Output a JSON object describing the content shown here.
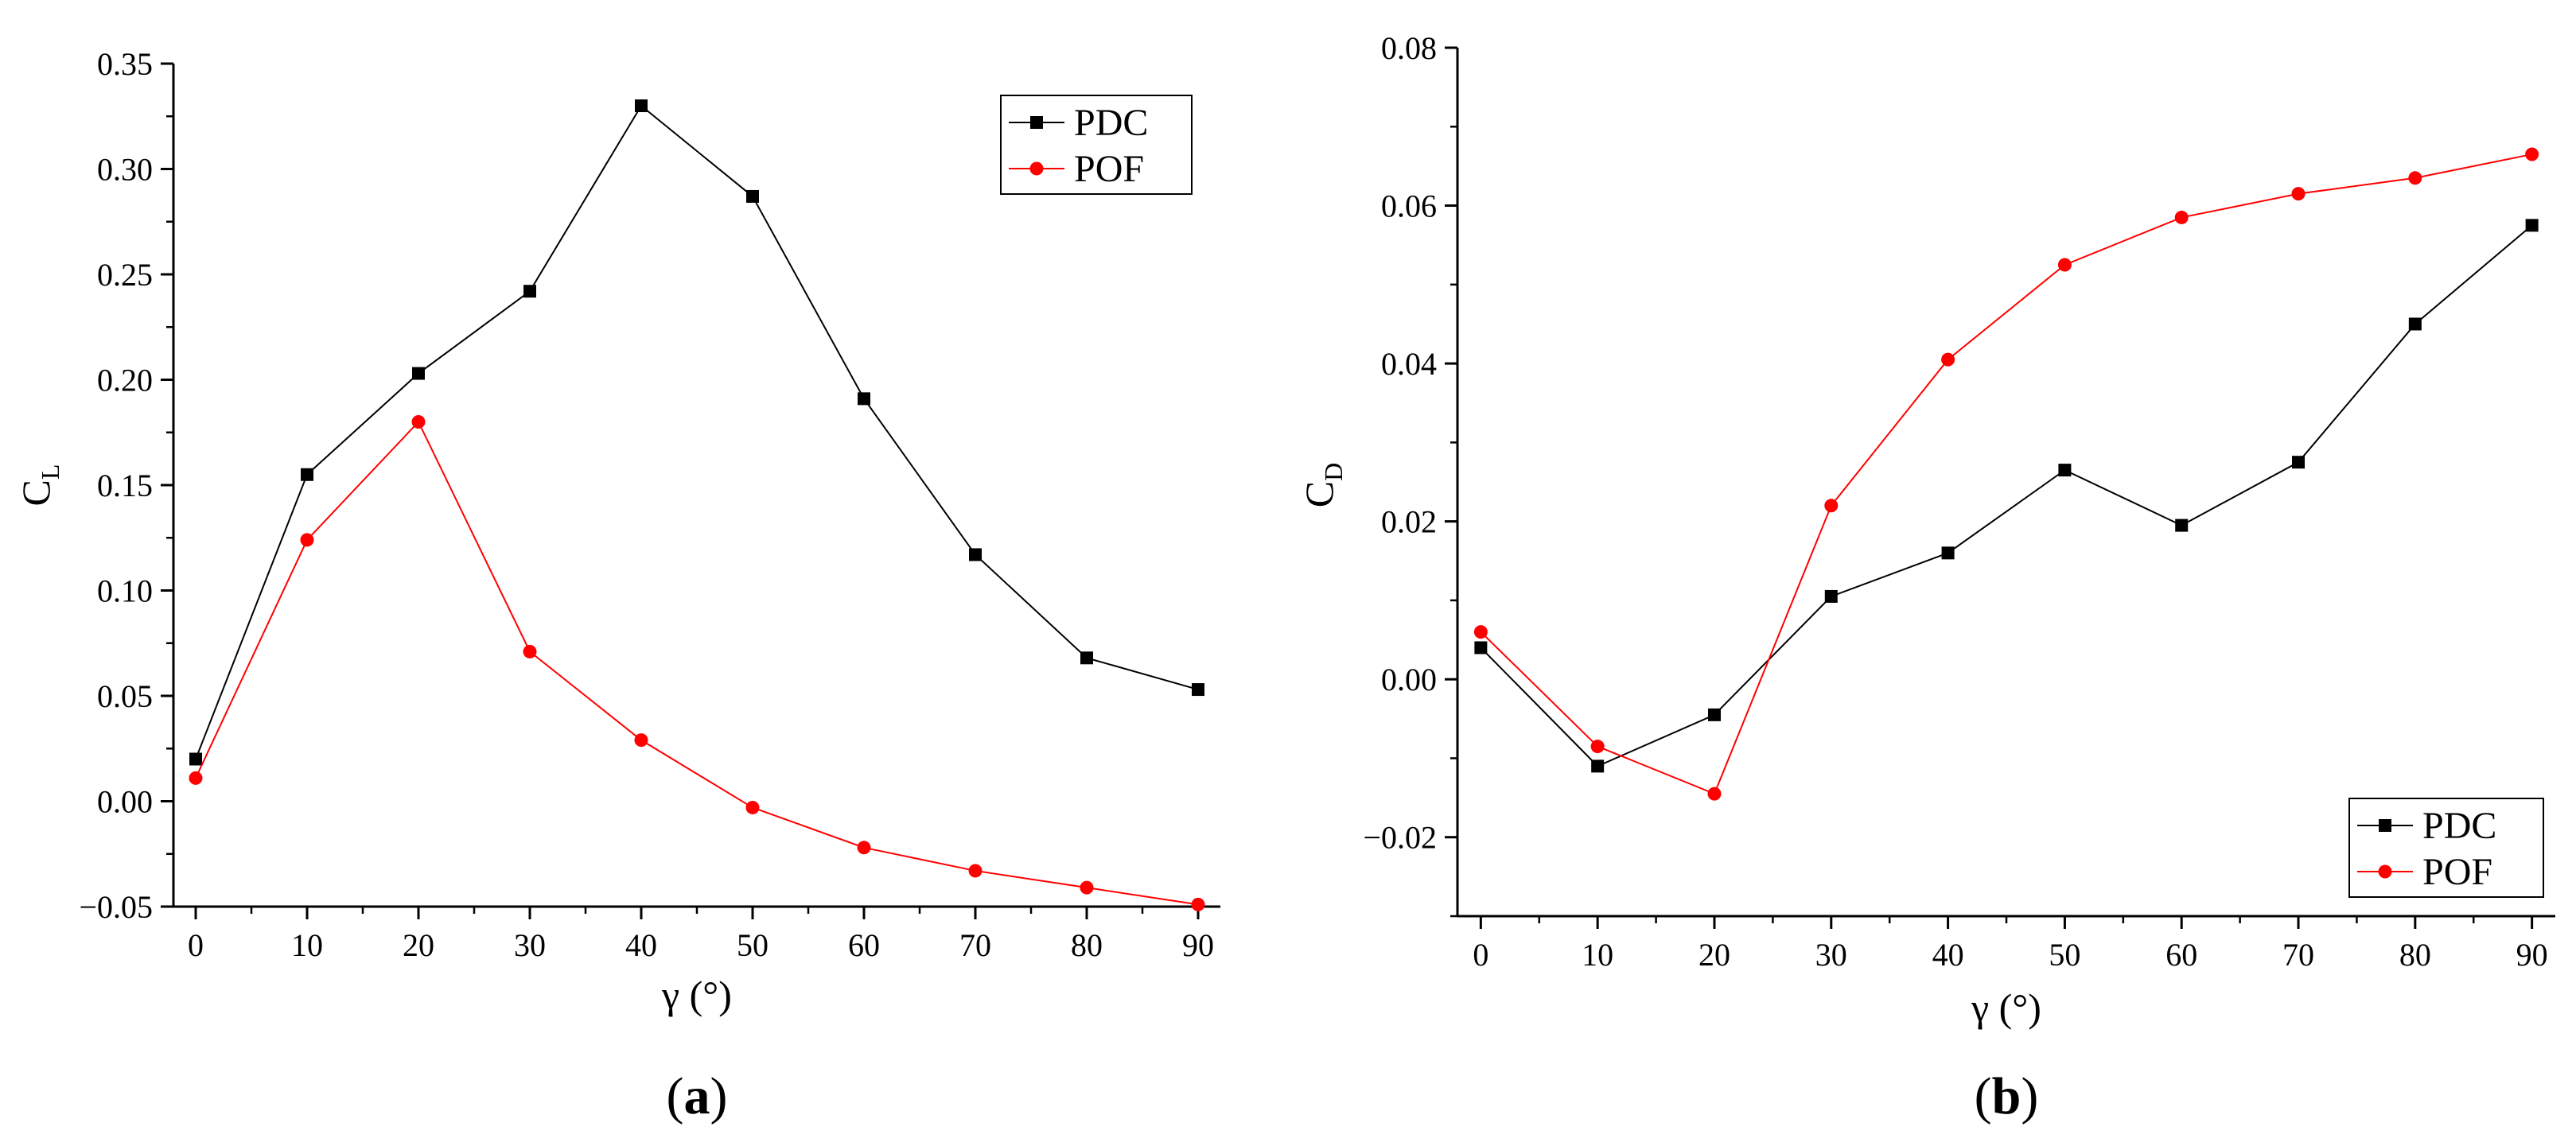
{
  "chart_data": [
    {
      "type": "line",
      "panel_label": "a",
      "caption_open": "(",
      "caption_close": ")",
      "title": "",
      "xlabel": "γ (°)",
      "ylabel_main": "C",
      "ylabel_sub": "L",
      "x": [
        0,
        10,
        20,
        30,
        40,
        50,
        60,
        70,
        80,
        90
      ],
      "xlim": [
        -2,
        92
      ],
      "ylim": [
        -0.05,
        0.35
      ],
      "xticks": [
        0,
        10,
        20,
        30,
        40,
        50,
        60,
        70,
        80,
        90
      ],
      "xtick_labels": [
        "0",
        "10",
        "20",
        "30",
        "40",
        "50",
        "60",
        "70",
        "80",
        "90"
      ],
      "yticks": [
        -0.05,
        0.0,
        0.05,
        0.1,
        0.15,
        0.2,
        0.25,
        0.3,
        0.35
      ],
      "ytick_labels": [
        "−0.05",
        "0.00",
        "0.05",
        "0.10",
        "0.15",
        "0.20",
        "0.25",
        "0.30",
        "0.35"
      ],
      "legend_position": "top-right",
      "series": [
        {
          "name": "PDC",
          "color": "#000000",
          "marker": "square",
          "values": [
            0.02,
            0.155,
            0.203,
            0.242,
            0.33,
            0.287,
            0.191,
            0.117,
            0.068,
            0.053
          ]
        },
        {
          "name": "POF",
          "color": "#ff0000",
          "marker": "circle",
          "values": [
            0.011,
            0.124,
            0.18,
            0.071,
            0.029,
            -0.003,
            -0.022,
            -0.033,
            -0.041,
            -0.049
          ]
        }
      ]
    },
    {
      "type": "line",
      "panel_label": "b",
      "caption_open": "(",
      "caption_close": ")",
      "title": "",
      "xlabel": "γ (°)",
      "ylabel_main": "C",
      "ylabel_sub": "D",
      "x": [
        0,
        10,
        20,
        30,
        40,
        50,
        60,
        70,
        80,
        90
      ],
      "xlim": [
        -2,
        92
      ],
      "ylim": [
        -0.03,
        0.08
      ],
      "xticks": [
        0,
        10,
        20,
        30,
        40,
        50,
        60,
        70,
        80,
        90
      ],
      "xtick_labels": [
        "0",
        "10",
        "20",
        "30",
        "40",
        "50",
        "60",
        "70",
        "80",
        "90"
      ],
      "yticks": [
        -0.02,
        0.0,
        0.02,
        0.04,
        0.06,
        0.08
      ],
      "ytick_labels": [
        "−0.02",
        "0.00",
        "0.02",
        "0.04",
        "0.06",
        "0.08"
      ],
      "legend_position": "bottom-right",
      "series": [
        {
          "name": "PDC",
          "color": "#000000",
          "marker": "square",
          "values": [
            0.004,
            -0.011,
            -0.0045,
            0.0105,
            0.016,
            0.0265,
            0.0195,
            0.0275,
            0.045,
            0.0575
          ]
        },
        {
          "name": "POF",
          "color": "#ff0000",
          "marker": "circle",
          "values": [
            0.006,
            -0.0085,
            -0.0145,
            0.022,
            0.0405,
            0.0525,
            0.0585,
            0.0615,
            0.0635,
            0.0665
          ]
        }
      ]
    }
  ]
}
